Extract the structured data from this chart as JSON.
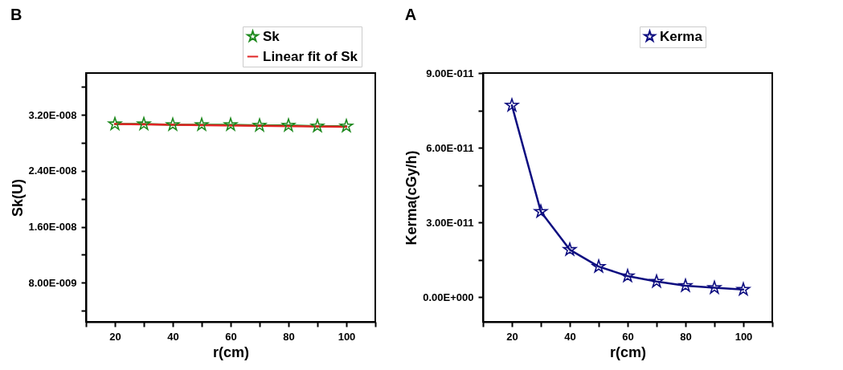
{
  "chart_data": [
    {
      "type": "line",
      "title": "B",
      "xlabel": "r(cm)",
      "ylabel": "Sk(U)",
      "xlim": [
        10,
        110
      ],
      "xticks": [
        {
          "value": 10,
          "label": null
        },
        20,
        {
          "value": 30,
          "label": null
        },
        40,
        {
          "value": 50,
          "label": null
        },
        60,
        {
          "value": 70,
          "label": null
        },
        80,
        {
          "value": 90,
          "label": null
        },
        100,
        {
          "value": 110,
          "label": null
        }
      ],
      "ylim": [
        2.4e-09,
        3.8e-08
      ],
      "yticks": [
        {
          "value": 4e-09,
          "label": null
        },
        {
          "value": 8e-09,
          "label": "8.00E-009"
        },
        {
          "value": 1.2e-08,
          "label": null
        },
        {
          "value": 1.6e-08,
          "label": "1.60E-008"
        },
        {
          "value": 2e-08,
          "label": null
        },
        {
          "value": 2.4e-08,
          "label": "2.40E-008"
        },
        {
          "value": 2.8e-08,
          "label": null
        },
        {
          "value": 3.2e-08,
          "label": "3.20E-008"
        },
        {
          "value": 3.6e-08,
          "label": null
        }
      ],
      "grid": false,
      "legend": "top right",
      "series": [
        {
          "name": "Sk",
          "color": "#1f8a1f",
          "marker": "star",
          "x": [
            20,
            30,
            40,
            50,
            60,
            70,
            80,
            90,
            100
          ],
          "values": [
            3.07e-08,
            3.07e-08,
            3.06e-08,
            3.06e-08,
            3.06e-08,
            3.05e-08,
            3.05e-08,
            3.04e-08,
            3.04e-08
          ]
        },
        {
          "name": "Linear fit of Sk",
          "type": "line",
          "color": "#e02424",
          "marker": "none",
          "x": [
            20,
            100
          ],
          "values": [
            3.07e-08,
            3.03e-08
          ]
        }
      ]
    },
    {
      "type": "line",
      "title": "A",
      "xlabel": "r(cm)",
      "ylabel": "Kerma(cGy/h)",
      "xlim": [
        10,
        110
      ],
      "xticks": [
        {
          "value": 10,
          "label": null
        },
        20,
        {
          "value": 30,
          "label": null
        },
        40,
        {
          "value": 50,
          "label": null
        },
        60,
        {
          "value": 70,
          "label": null
        },
        80,
        {
          "value": 90,
          "label": null
        },
        100,
        {
          "value": 110,
          "label": null
        }
      ],
      "ylim": [
        -1e-11,
        9e-11
      ],
      "yticks": [
        {
          "value": 0,
          "label": "0.00E+000"
        },
        {
          "value": 1.5e-11,
          "label": null
        },
        {
          "value": 3e-11,
          "label": "3.00E-011"
        },
        {
          "value": 4.5e-11,
          "label": null
        },
        {
          "value": 6e-11,
          "label": "6.00E-011"
        },
        {
          "value": 7.5e-11,
          "label": null
        },
        {
          "value": 9e-11,
          "label": "9.00E-011"
        }
      ],
      "grid": false,
      "legend": "top right",
      "series": [
        {
          "name": "Kerma",
          "color": "#0d0d80",
          "marker": "star",
          "x": [
            20,
            30,
            40,
            50,
            60,
            70,
            80,
            90,
            100
          ],
          "values": [
            7.7e-11,
            3.43e-11,
            1.9e-11,
            1.22e-11,
            8.4e-12,
            6.2e-12,
            4.5e-12,
            3.7e-12,
            3e-12
          ]
        }
      ]
    }
  ]
}
